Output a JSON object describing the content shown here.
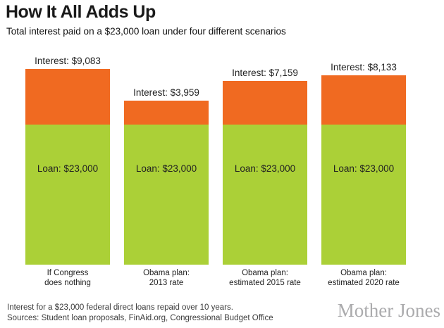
{
  "header": {
    "title": "How It All Adds Up",
    "subtitle": "Total interest paid on a $23,000 loan under four different scenarios"
  },
  "chart_data": {
    "type": "bar",
    "stacked": true,
    "title": "How It All Adds Up",
    "subtitle": "Total interest paid on a $23,000 loan under four different scenarios",
    "categories": [
      [
        "If Congress",
        "does nothing"
      ],
      [
        "Obama plan:",
        "2013 rate"
      ],
      [
        "Obama plan:",
        "estimated 2015 rate"
      ],
      [
        "Obama plan:",
        "estimated 2020 rate"
      ]
    ],
    "series": [
      {
        "name": "Loan",
        "color": "#abd037",
        "values": [
          23000,
          23000,
          23000,
          23000
        ],
        "labels": [
          "Loan: $23,000",
          "Loan: $23,000",
          "Loan: $23,000",
          "Loan: $23,000"
        ]
      },
      {
        "name": "Interest",
        "color": "#f06a21",
        "values": [
          9083,
          3959,
          7159,
          8133
        ],
        "labels": [
          "Interest: $9,083",
          "Interest: $3,959",
          "Interest: $7,159",
          "Interest: $8,133"
        ]
      }
    ],
    "legend": false,
    "axes": "none",
    "grid": false
  },
  "footer": {
    "note": "Interest for a $23,000 federal direct loans repaid over 10 years.",
    "sources": "Sources: Student loan proposals, FinAid.org, Congressional Budget Office",
    "brand": "Mother Jones"
  },
  "colors": {
    "interest": "#f06a21",
    "loan": "#abd037",
    "brand_gray": "#ababad",
    "text_dark": "#222222"
  }
}
